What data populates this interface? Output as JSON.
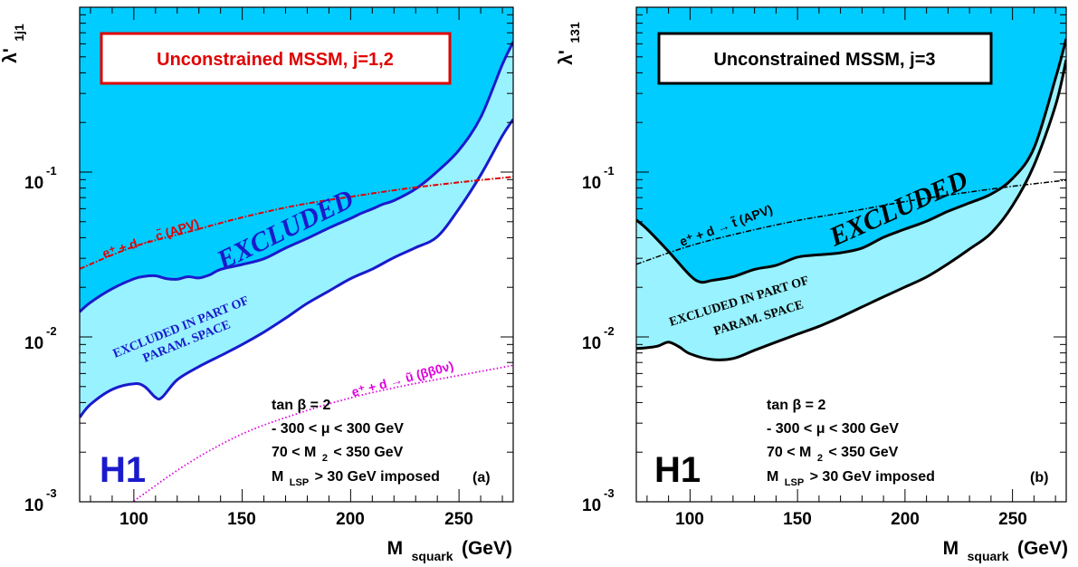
{
  "chart_data": [
    {
      "type": "area",
      "panel": "(a)",
      "title": "Unconstrained MSSM, j=1,2",
      "title_color": "#e00000",
      "ylabel": "λ'",
      "ylabel_sub": "1j1",
      "xlabel": "M",
      "xlabel_sub": "squark",
      "xlabel_unit": "(GeV)",
      "xlim": [
        75,
        275
      ],
      "ylim": [
        0.001,
        1.0
      ],
      "yscale": "log",
      "x_ticks": [
        "100",
        "150",
        "200",
        "250"
      ],
      "x_tick_values": [
        100,
        150,
        200,
        250
      ],
      "y_ticks": [
        {
          "base": "10",
          "exp": "-1",
          "value": 0.1
        },
        {
          "base": "10",
          "exp": "-2",
          "value": 0.01
        },
        {
          "base": "10",
          "exp": "-3",
          "value": 0.001
        }
      ],
      "excluded_label": "EXCLUDED",
      "excluded_part_label": [
        "EXCLUDED IN PART OF",
        "PARAM. SPACE"
      ],
      "excluded_color": "#00ccff",
      "partial_color": "#99f2ff",
      "boundary_color": "#1a1acc",
      "series": [
        {
          "role": "excluded_boundary",
          "x": [
            75,
            80,
            90,
            100,
            105,
            110,
            115,
            120,
            125,
            130,
            135,
            140,
            150,
            160,
            170,
            180,
            190,
            200,
            205,
            210,
            215,
            220,
            230,
            240,
            250,
            260,
            270,
            275
          ],
          "y": [
            0.0142,
            0.0162,
            0.0196,
            0.0225,
            0.0233,
            0.0235,
            0.0226,
            0.0224,
            0.0232,
            0.0228,
            0.0238,
            0.0257,
            0.0275,
            0.0298,
            0.0346,
            0.0396,
            0.0458,
            0.0524,
            0.0563,
            0.0598,
            0.0639,
            0.0672,
            0.0791,
            0.101,
            0.136,
            0.215,
            0.45,
            0.616
          ]
        },
        {
          "role": "partial_boundary",
          "x": [
            75,
            80,
            90,
            100,
            105,
            110,
            113,
            120,
            130,
            140,
            150,
            160,
            170,
            180,
            190,
            200,
            210,
            220,
            230,
            240,
            250,
            260,
            270,
            275
          ],
          "y": [
            0.00325,
            0.0039,
            0.0048,
            0.0052,
            0.005,
            0.0043,
            0.0043,
            0.0055,
            0.0066,
            0.0077,
            0.009,
            0.0107,
            0.013,
            0.016,
            0.019,
            0.0226,
            0.0258,
            0.0303,
            0.0348,
            0.0406,
            0.06,
            0.096,
            0.166,
            0.209
          ]
        },
        {
          "name": "e⁺ + d → c̃ (APV)",
          "color": "#e00000",
          "x": [
            75,
            100,
            125,
            150,
            175,
            200,
            225,
            250,
            275
          ],
          "y": [
            0.0259,
            0.0353,
            0.0434,
            0.0531,
            0.0628,
            0.0709,
            0.0792,
            0.0867,
            0.0936
          ]
        },
        {
          "name": "e⁺ + d → ũ (ββ0ν)",
          "color": "#e000e0",
          "x": [
            100,
            125,
            150,
            175,
            200,
            225,
            250,
            275
          ],
          "y": [
            0.00101,
            0.00171,
            0.00258,
            0.00341,
            0.00427,
            0.00507,
            0.00584,
            0.00673
          ]
        }
      ],
      "params": [
        "tan β = 2",
        "- 300 < μ < 300 GeV",
        "70 < M",
        "2",
        "< 350 GeV",
        "M",
        "LSP",
        "> 30 GeV imposed"
      ],
      "logo": "H1",
      "logo_color": "#1a1acc"
    },
    {
      "type": "area",
      "panel": "(b)",
      "title": "Unconstrained MSSM, j=3",
      "title_color": "#000000",
      "ylabel": "λ'",
      "ylabel_sub": "131",
      "xlabel": "M",
      "xlabel_sub": "squark",
      "xlabel_unit": "(GeV)",
      "xlim": [
        75,
        275
      ],
      "ylim": [
        0.001,
        1.0
      ],
      "yscale": "log",
      "x_ticks": [
        "100",
        "150",
        "200",
        "250"
      ],
      "x_tick_values": [
        100,
        150,
        200,
        250
      ],
      "y_ticks": [
        {
          "base": "10",
          "exp": "-1",
          "value": 0.1
        },
        {
          "base": "10",
          "exp": "-2",
          "value": 0.01
        },
        {
          "base": "10",
          "exp": "-3",
          "value": 0.001
        }
      ],
      "excluded_label": "EXCLUDED",
      "excluded_part_label": [
        "EXCLUDED IN PART OF",
        "PARAM. SPACE"
      ],
      "excluded_color": "#00ccff",
      "partial_color": "#99f2ff",
      "boundary_color": "#000000",
      "series": [
        {
          "role": "excluded_boundary",
          "x": [
            75,
            80,
            90,
            100,
            105,
            110,
            120,
            130,
            140,
            150,
            160,
            170,
            180,
            190,
            200,
            210,
            220,
            230,
            240,
            250,
            260,
            270,
            275
          ],
          "y": [
            0.0513,
            0.0451,
            0.033,
            0.0236,
            0.0215,
            0.022,
            0.0232,
            0.0257,
            0.0272,
            0.0305,
            0.0315,
            0.0324,
            0.0346,
            0.0402,
            0.0451,
            0.0503,
            0.0578,
            0.065,
            0.0735,
            0.0913,
            0.14,
            0.37,
            0.644
          ]
        },
        {
          "role": "partial_boundary",
          "x": [
            75,
            80,
            85,
            90,
            95,
            100,
            110,
            120,
            130,
            140,
            150,
            160,
            170,
            180,
            190,
            200,
            210,
            220,
            230,
            240,
            250,
            260,
            270,
            275
          ],
          "y": [
            0.0085,
            0.0086,
            0.0088,
            0.0093,
            0.0087,
            0.0079,
            0.0073,
            0.0074,
            0.0083,
            0.0093,
            0.0104,
            0.0116,
            0.0132,
            0.0152,
            0.0175,
            0.0201,
            0.0231,
            0.0278,
            0.0341,
            0.0426,
            0.0625,
            0.11,
            0.253,
            0.48
          ]
        },
        {
          "name": "e⁺ + d → t̃ (APV)",
          "color": "#000000",
          "x": [
            75,
            100,
            125,
            150,
            175,
            200,
            225,
            250,
            275
          ],
          "y": [
            0.0276,
            0.0357,
            0.0432,
            0.0508,
            0.0578,
            0.0662,
            0.0741,
            0.082,
            0.0893
          ]
        }
      ],
      "params": [
        "tan β = 2",
        "- 300 < μ < 300 GeV",
        "70 < M",
        "2",
        "< 350 GeV",
        "M",
        "LSP",
        "> 30 GeV imposed"
      ],
      "logo": "H1",
      "logo_color": "#000000"
    }
  ]
}
